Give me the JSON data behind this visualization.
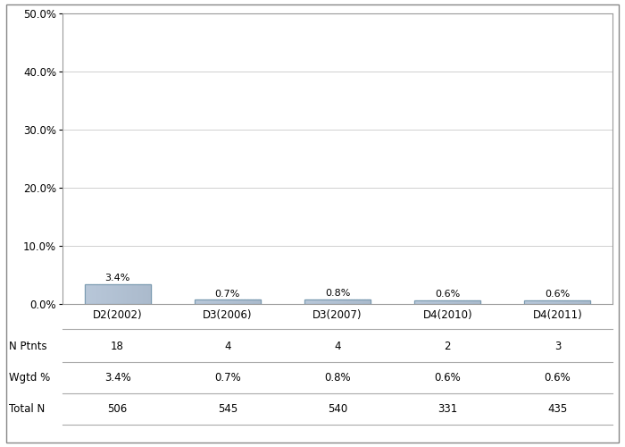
{
  "categories": [
    "D2(2002)",
    "D3(2006)",
    "D3(2007)",
    "D4(2010)",
    "D4(2011)"
  ],
  "values": [
    3.4,
    0.7,
    0.8,
    0.6,
    0.6
  ],
  "bar_color": "#9db8cc",
  "bar_edge_color": "#7a9ab0",
  "n_ptnts": [
    18,
    4,
    4,
    2,
    3
  ],
  "wgtd_pct": [
    "3.4%",
    "0.7%",
    "0.8%",
    "0.6%",
    "0.6%"
  ],
  "total_n": [
    506,
    545,
    540,
    331,
    435
  ],
  "ylim": [
    0,
    50
  ],
  "yticks": [
    0,
    10,
    20,
    30,
    40,
    50
  ],
  "ytick_labels": [
    "0.0%",
    "10.0%",
    "20.0%",
    "30.0%",
    "40.0%",
    "50.0%"
  ],
  "row_labels": [
    "N Ptnts",
    "Wgtd %",
    "Total N"
  ],
  "background_color": "#ffffff",
  "grid_color": "#d0d0d0",
  "bar_label_fontsize": 8,
  "axis_fontsize": 8.5,
  "table_fontsize": 8.5
}
